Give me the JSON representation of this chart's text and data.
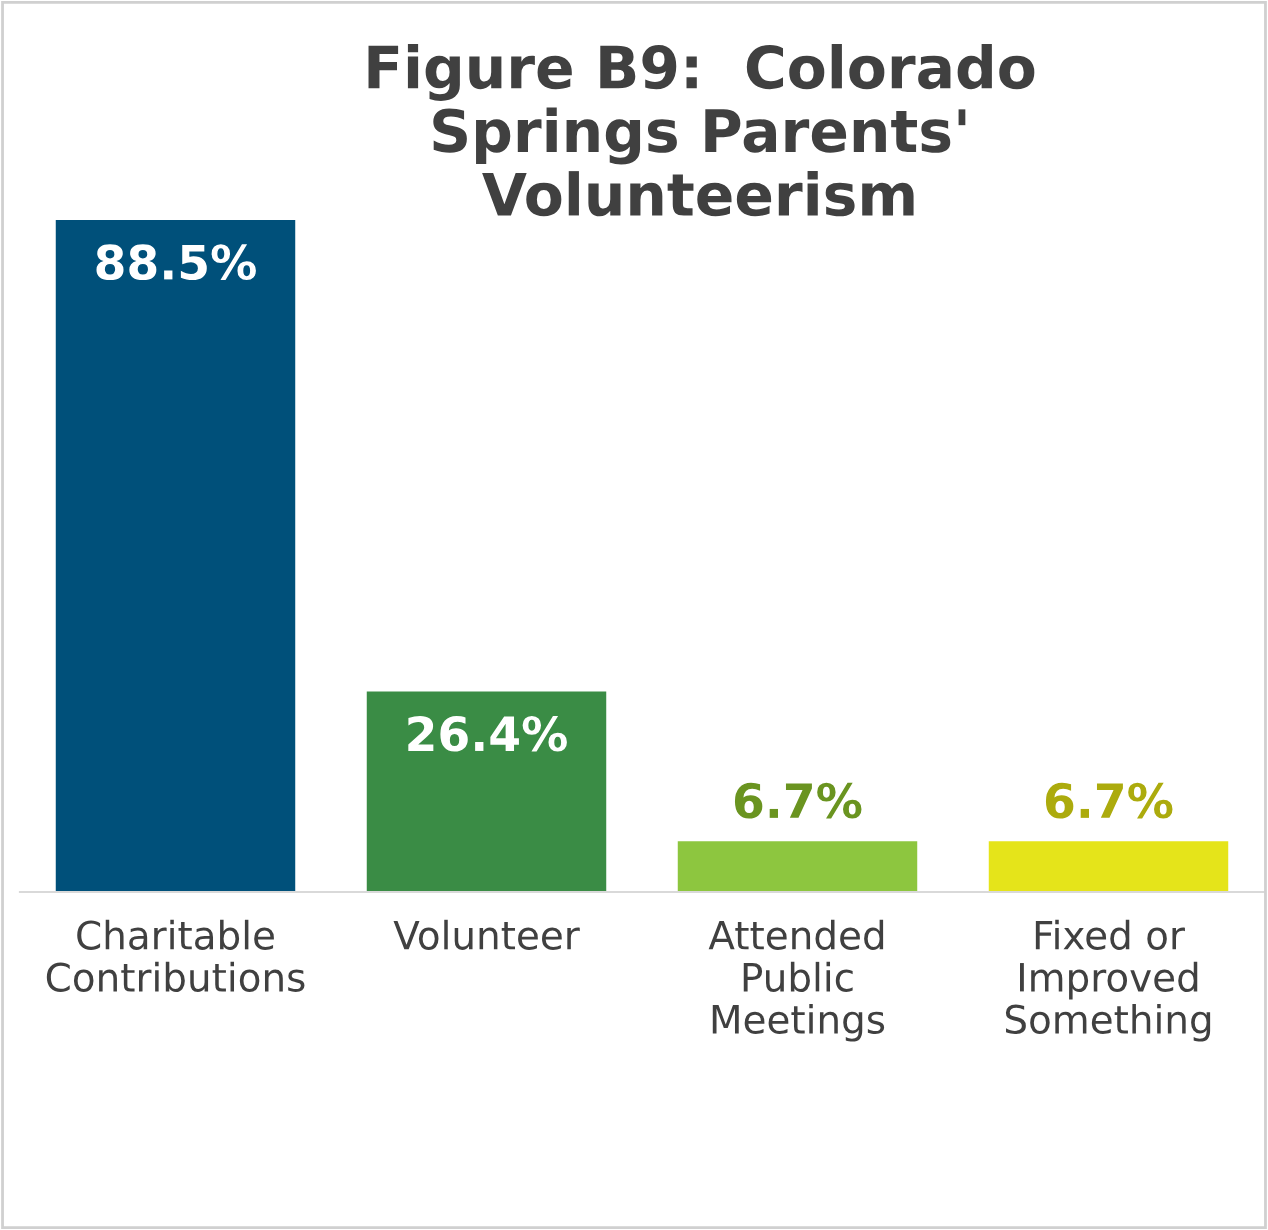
{
  "chart_data": {
    "type": "bar",
    "title": "Figure B9:  Colorado\nSprings Parents'\nVolunteerism",
    "categories": [
      "Charitable\nContributions",
      "Volunteer",
      "Attended\nPublic\nMeetings",
      "Fixed or\nImproved\nSomething"
    ],
    "values": [
      88.5,
      26.4,
      6.7,
      6.7
    ],
    "value_labels": [
      "88.5%",
      "26.4%",
      "6.7%",
      "6.7%"
    ],
    "colors": [
      "#00507a",
      "#3a8c45",
      "#8dc63f",
      "#e5e41a"
    ],
    "grid": false
  }
}
